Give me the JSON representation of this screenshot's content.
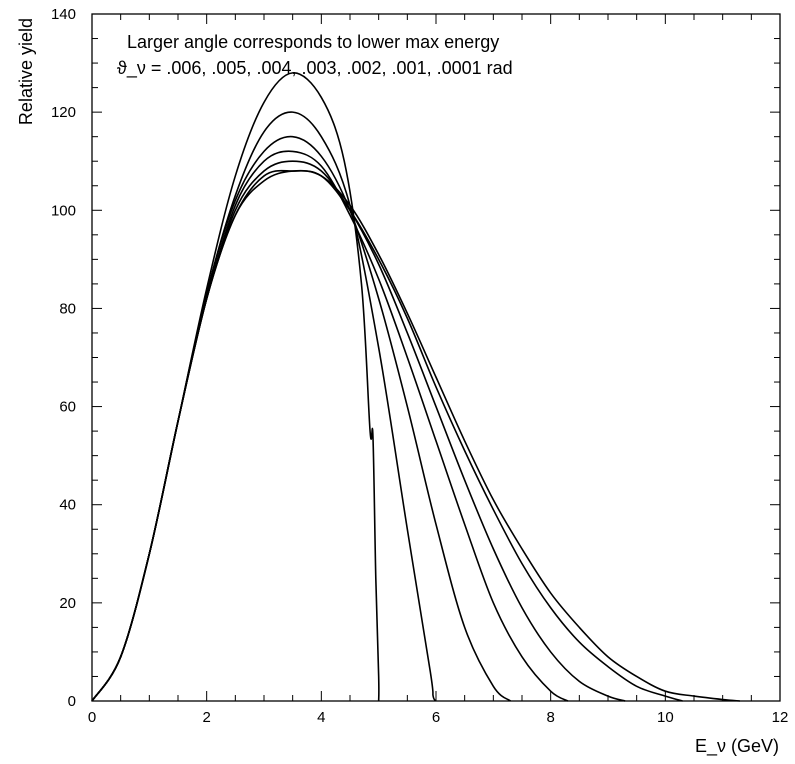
{
  "chart_data": {
    "type": "line",
    "annotation_lines": [
      "Larger angle corresponds to lower max energy",
      "ϑ_ν = .006, .005, .004, .003, .002, .001, .0001 rad"
    ],
    "xlabel": "E_ν (GeV)",
    "ylabel": "Relative yield",
    "xlim": [
      0,
      12
    ],
    "ylim": [
      0,
      140
    ],
    "x_ticks": [
      0,
      2,
      4,
      6,
      8,
      10,
      12
    ],
    "y_ticks": [
      0,
      20,
      40,
      60,
      80,
      100,
      120,
      140
    ],
    "x_minor_step": 0.5,
    "y_minor_step": 5,
    "grid": false,
    "series": [
      {
        "x": [
          0,
          0.5,
          1,
          1.5,
          2,
          2.5,
          3,
          3.5,
          4,
          4.4,
          4.7,
          4.85,
          4.9,
          4.95,
          5.0,
          5.0
        ],
        "y": [
          0,
          9,
          30,
          57,
          84,
          107,
          122,
          128,
          123,
          110,
          85,
          55,
          54,
          25,
          5,
          0
        ]
      },
      {
        "x": [
          0,
          0.5,
          1,
          1.5,
          2,
          2.5,
          3,
          3.5,
          4,
          4.5,
          5,
          5.5,
          5.9,
          5.95,
          6.0
        ],
        "y": [
          0,
          9,
          30,
          57,
          83,
          103,
          116,
          120,
          115,
          101,
          72,
          35,
          6,
          1,
          0
        ]
      },
      {
        "x": [
          0,
          0.5,
          1,
          1.5,
          2,
          2.5,
          3,
          3.5,
          4,
          4.5,
          5,
          5.5,
          6,
          6.5,
          7,
          7.3
        ],
        "y": [
          0,
          9,
          30,
          57,
          83,
          102,
          112,
          115,
          111,
          100,
          82,
          60,
          36,
          15,
          3,
          0
        ]
      },
      {
        "x": [
          0,
          0.5,
          1,
          1.5,
          2,
          2.5,
          3,
          3.5,
          4,
          4.5,
          5,
          5.5,
          6,
          6.5,
          7,
          7.5,
          8,
          8.3
        ],
        "y": [
          0,
          9,
          30,
          57,
          82,
          101,
          110,
          112,
          109,
          99,
          86,
          70,
          53,
          36,
          20,
          9,
          2,
          0
        ]
      },
      {
        "x": [
          0,
          0.5,
          1,
          1.5,
          2,
          2.5,
          3,
          3.5,
          4,
          4.5,
          5,
          5.5,
          6,
          6.5,
          7,
          7.5,
          8,
          8.5,
          9,
          9.3
        ],
        "y": [
          0,
          9,
          30,
          57,
          82,
          100,
          108,
          110,
          108,
          100,
          89,
          75,
          60,
          45,
          31,
          19,
          10,
          4,
          1,
          0
        ]
      },
      {
        "x": [
          0,
          0.5,
          1,
          1.5,
          2,
          2.5,
          3,
          3.5,
          4,
          4.5,
          5,
          5.5,
          6,
          6.5,
          7,
          7.5,
          8,
          8.5,
          9,
          9.5,
          10,
          10.3
        ],
        "y": [
          0,
          9,
          30,
          57,
          82,
          99,
          107,
          108,
          107,
          100,
          90,
          78,
          64,
          51,
          39,
          28,
          19,
          12,
          7,
          3,
          1,
          0
        ]
      },
      {
        "x": [
          0,
          0.5,
          1,
          1.5,
          2,
          2.5,
          3,
          3.5,
          4,
          4.5,
          5,
          5.5,
          6,
          6.5,
          7,
          7.5,
          8,
          8.5,
          9,
          9.5,
          10,
          10.5,
          11,
          11.3
        ],
        "y": [
          0,
          9,
          30,
          57,
          82,
          99,
          106,
          108,
          107,
          101,
          91,
          79,
          66,
          53,
          41,
          31,
          22,
          15,
          9,
          5,
          2,
          1,
          0.3,
          0
        ]
      }
    ]
  }
}
